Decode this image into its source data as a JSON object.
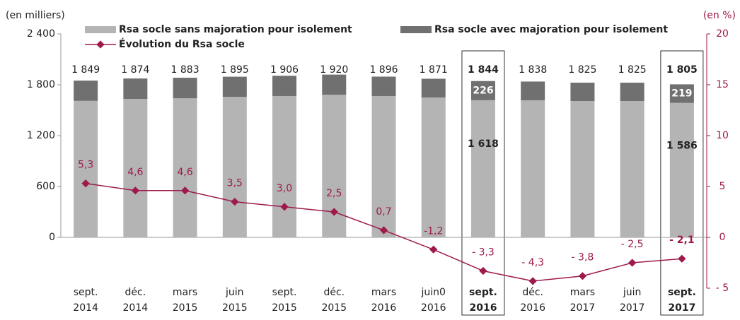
{
  "chart_data": {
    "type": "bar",
    "stacked": true,
    "y_label": "(en milliers)",
    "y2_label": "(en %)",
    "categories": [
      [
        "sept.",
        "2014"
      ],
      [
        "déc.",
        "2014"
      ],
      [
        "mars",
        "2015"
      ],
      [
        "juin",
        "2015"
      ],
      [
        "sept.",
        "2015"
      ],
      [
        "déc.",
        "2015"
      ],
      [
        "mars",
        "2016"
      ],
      [
        "juin0",
        "2016"
      ],
      [
        "sept.",
        "2016"
      ],
      [
        "déc.",
        "2016"
      ],
      [
        "mars",
        "2017"
      ],
      [
        "juin",
        "2017"
      ],
      [
        "sept.",
        "2017"
      ]
    ],
    "highlight": [
      8,
      12
    ],
    "series": [
      {
        "name": "Rsa socle sans majoration pour isolement",
        "color": "#b4b4b4",
        "values": [
          1610,
          1633,
          1640,
          1658,
          1667,
          1683,
          1667,
          1650,
          1618,
          1617,
          1608,
          1608,
          1586
        ]
      },
      {
        "name": "Rsa socle avec majoration pour isolement",
        "color": "#707070",
        "values": [
          239,
          241,
          243,
          237,
          239,
          237,
          229,
          221,
          226,
          221,
          217,
          217,
          219
        ]
      },
      {
        "name": "Évolution du Rsa socle",
        "type": "line",
        "axis": "y2",
        "color": "#9e1a4c",
        "values": [
          5.3,
          4.6,
          4.6,
          3.5,
          3.0,
          2.5,
          0.7,
          -1.2,
          -3.3,
          -4.3,
          -3.8,
          -2.5,
          -2.1
        ],
        "value_labels": [
          "5,3",
          "4,6",
          "4,6",
          "3,5",
          "3,0",
          "2,5",
          "0,7",
          "-1,2",
          "- 3,3",
          "- 4,3",
          "- 3,8",
          "- 2,5",
          "- 2,1"
        ]
      }
    ],
    "totals": [
      {
        "value": 1849,
        "label": "1 849"
      },
      {
        "value": 1874,
        "label": "1 874"
      },
      {
        "value": 1883,
        "label": "1 883"
      },
      {
        "value": 1895,
        "label": "1 895"
      },
      {
        "value": 1906,
        "label": "1 906"
      },
      {
        "value": 1920,
        "label": "1 920"
      },
      {
        "value": 1896,
        "label": "1 896"
      },
      {
        "value": 1871,
        "label": "1 871"
      },
      {
        "value": 1844,
        "label": "1 844"
      },
      {
        "value": 1838,
        "label": "1 838"
      },
      {
        "value": 1825,
        "label": "1 825"
      },
      {
        "value": 1825,
        "label": "1 825"
      },
      {
        "value": 1805,
        "label": "1 805"
      }
    ],
    "segment_value_labels": {
      "8": [
        {
          "value": 1618,
          "label": "1 618"
        },
        226
      ],
      "12": [
        {
          "value": 1586,
          "label": "1 586"
        },
        219
      ]
    },
    "ylim": [
      -600,
      2400
    ],
    "yticks": [
      0,
      600,
      {
        "value": 1200,
        "label": "1 200"
      },
      {
        "value": 1800,
        "label": "1 800"
      },
      {
        "value": 2400,
        "label": "2 400"
      }
    ],
    "y2lim": [
      -5,
      20
    ],
    "y2ticks": [
      {
        "value": -5,
        "label": "- 5"
      },
      0,
      5,
      10,
      15,
      20
    ]
  }
}
